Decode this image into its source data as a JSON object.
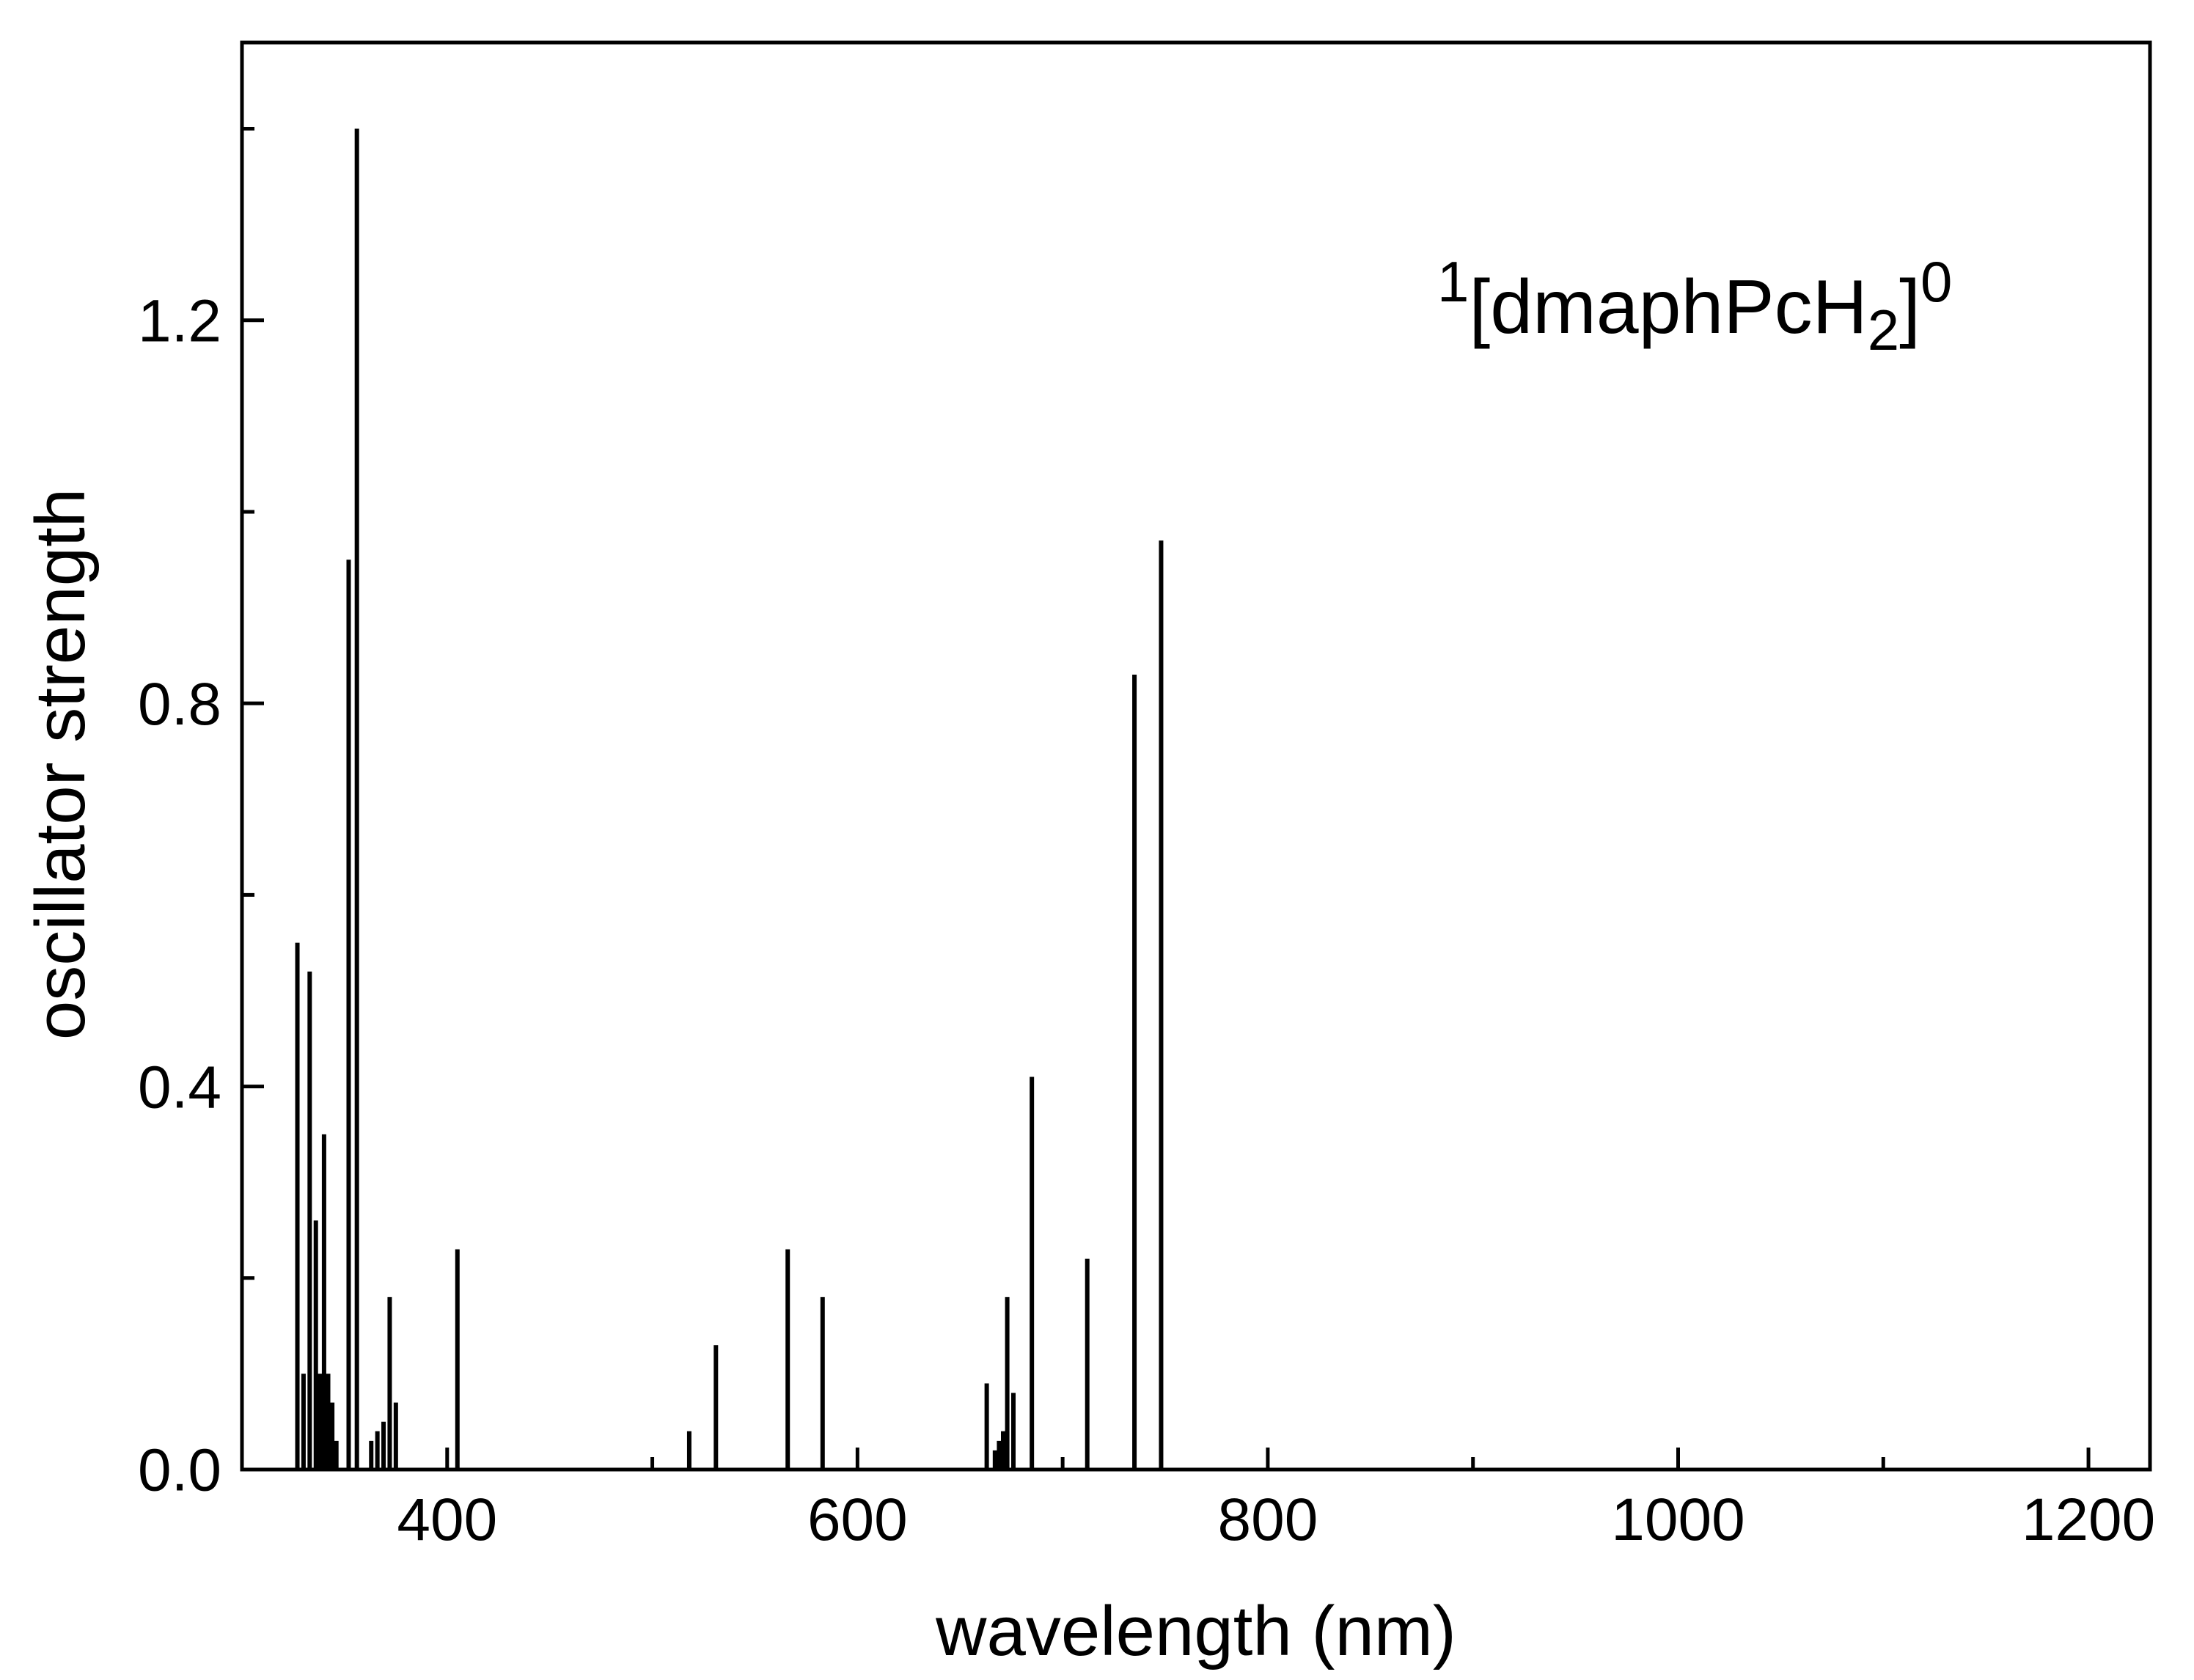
{
  "figure": {
    "background_color": "#ffffff",
    "frame_color": "#000000",
    "stick_color": "#000000"
  },
  "annotation": {
    "sup_left": "1",
    "body": "[dmaphPcH",
    "sub": "2",
    "bracket_close": "]",
    "sup_right": "0"
  },
  "chart_data": {
    "type": "bar",
    "subtype": "stick-spectrum",
    "title": "",
    "xlabel": "wavelength (nm)",
    "ylabel": "oscillator strength",
    "xlim": [
      300,
      1230
    ],
    "ylim": [
      0,
      1.49
    ],
    "grid": false,
    "legend": "none",
    "xticks": [
      {
        "v": 400,
        "label": "400"
      },
      {
        "v": 600,
        "label": "600"
      },
      {
        "v": 800,
        "label": "800"
      },
      {
        "v": 1000,
        "label": "1000"
      },
      {
        "v": 1200,
        "label": "1200"
      }
    ],
    "yticks": [
      {
        "v": 0.0,
        "label": "0.0"
      },
      {
        "v": 0.4,
        "label": "0.4"
      },
      {
        "v": 0.8,
        "label": "0.8"
      },
      {
        "v": 1.2,
        "label": "1.2"
      }
    ],
    "x_minor_step": 100,
    "y_minor_step": 0.2,
    "series": [
      {
        "name": "oscillator strengths",
        "points": [
          [
            327,
            0.55
          ],
          [
            330,
            0.1
          ],
          [
            333,
            0.52
          ],
          [
            336,
            0.26
          ],
          [
            338,
            0.1
          ],
          [
            340,
            0.35
          ],
          [
            342,
            0.1
          ],
          [
            344,
            0.07
          ],
          [
            346,
            0.03
          ],
          [
            352,
            0.95
          ],
          [
            356,
            1.4
          ],
          [
            363,
            0.03
          ],
          [
            366,
            0.04
          ],
          [
            369,
            0.05
          ],
          [
            372,
            0.18
          ],
          [
            375,
            0.07
          ],
          [
            405,
            0.23
          ],
          [
            518,
            0.04
          ],
          [
            531,
            0.13
          ],
          [
            566,
            0.23
          ],
          [
            583,
            0.18
          ],
          [
            663,
            0.09
          ],
          [
            667,
            0.02
          ],
          [
            669,
            0.03
          ],
          [
            671,
            0.04
          ],
          [
            673,
            0.18
          ],
          [
            676,
            0.08
          ],
          [
            685,
            0.41
          ],
          [
            712,
            0.22
          ],
          [
            735,
            0.83
          ],
          [
            748,
            0.97
          ]
        ]
      }
    ]
  }
}
